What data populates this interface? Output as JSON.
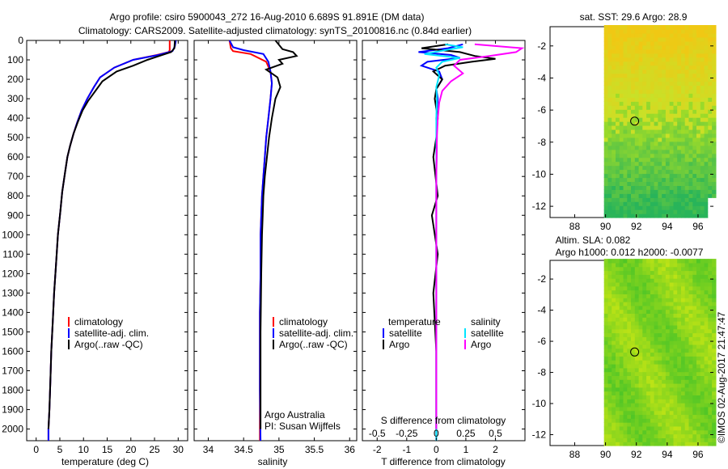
{
  "header": {
    "line1": "Argo profile: csiro 5900043_272 16-Aug-2010 6.689S 91.891E (DM data)",
    "line2": "Climatology: CARS2009. Satellite-adjusted climatology: synTS_20100816.nc (0.84d earlier)"
  },
  "colors": {
    "climatology": "#ff0000",
    "satellite": "#0000ff",
    "argo": "#000000",
    "argo_salinity": "#ff00ff",
    "satellite_salinity": "#00e5ff"
  },
  "chart_data": [
    {
      "type": "line",
      "title": "",
      "xlabel": "temperature (deg C)",
      "ylabel": "",
      "xlim": [
        -2,
        32
      ],
      "ylim": [
        2060,
        0
      ],
      "xticks": [
        0,
        5,
        10,
        15,
        20,
        25,
        30
      ],
      "yticks": [
        0,
        100,
        200,
        300,
        400,
        500,
        600,
        700,
        800,
        900,
        1000,
        1100,
        1200,
        1300,
        1400,
        1500,
        1600,
        1700,
        1800,
        1900,
        2000
      ],
      "legend": [
        "climatology",
        "satellite-adj. clim.",
        "Argo(..raw -QC)"
      ],
      "series": [
        {
          "name": "climatology",
          "color": "#ff0000",
          "x": [
            28.2,
            28.2,
            28.0,
            25.5,
            20.5,
            16.5,
            13.5,
            12.2,
            10.8,
            9.6,
            8.7,
            7.9,
            7.2,
            6.6,
            6.1,
            5.5,
            5.1,
            4.6,
            4.2,
            3.8,
            3.5,
            3.2,
            3.0,
            2.8,
            2.6,
            2.6
          ],
          "y": [
            0,
            50,
            60,
            75,
            100,
            140,
            190,
            240,
            300,
            360,
            420,
            480,
            540,
            600,
            680,
            780,
            880,
            1000,
            1150,
            1300,
            1450,
            1600,
            1750,
            1900,
            2000,
            2060
          ]
        },
        {
          "name": "satellite-adj. clim.",
          "color": "#0000ff",
          "x": [
            29.5,
            29.3,
            28.8,
            25.8,
            20.5,
            16.5,
            13.5,
            12.2,
            10.8,
            9.6,
            8.7,
            7.9,
            7.2,
            6.6,
            6.1,
            5.5,
            5.1,
            4.6,
            4.2,
            3.8,
            3.5,
            3.2,
            3.0,
            2.8,
            2.6,
            2.6
          ],
          "y": [
            0,
            30,
            55,
            75,
            100,
            140,
            190,
            240,
            300,
            360,
            420,
            480,
            540,
            600,
            680,
            780,
            880,
            1000,
            1150,
            1300,
            1450,
            1600,
            1750,
            1900,
            2000,
            2060
          ]
        },
        {
          "name": "Argo(..raw -QC)",
          "color": "#000000",
          "x": [
            29.3,
            29.2,
            28.5,
            26.0,
            23.5,
            20.5,
            17.0,
            14.0,
            12.5,
            11.0,
            9.8,
            8.8,
            7.9,
            7.2,
            6.6,
            6.1,
            5.5,
            5.1,
            4.6,
            4.2,
            3.8,
            3.5,
            3.2,
            3.0,
            2.8,
            2.6
          ],
          "y": [
            0,
            40,
            60,
            80,
            100,
            130,
            160,
            210,
            260,
            310,
            360,
            420,
            480,
            540,
            600,
            680,
            780,
            880,
            1000,
            1150,
            1300,
            1450,
            1600,
            1750,
            1900,
            2000
          ]
        }
      ]
    },
    {
      "type": "line",
      "title": "",
      "xlabel": "salinity",
      "ylabel": "",
      "xlim": [
        33.8,
        36.1
      ],
      "ylim": [
        2060,
        0
      ],
      "xticks": [
        34,
        34.5,
        35,
        35.5,
        36
      ],
      "legend": [
        "climatology",
        "satellite-adj. clim.",
        "Argo(..raw -QC)"
      ],
      "annotations": [
        "Argo Australia",
        "PI: Susan Wijffels"
      ],
      "series": [
        {
          "name": "climatology",
          "color": "#ff0000",
          "x": [
            34.3,
            34.32,
            34.35,
            34.6,
            34.82,
            34.88,
            34.9,
            34.88,
            34.85,
            34.82,
            34.8,
            34.78,
            34.76,
            34.75,
            34.74,
            34.74,
            34.73,
            34.73,
            34.73,
            34.73
          ],
          "y": [
            0,
            40,
            55,
            70,
            110,
            160,
            220,
            300,
            400,
            500,
            600,
            700,
            800,
            900,
            1000,
            1200,
            1400,
            1600,
            1800,
            2060
          ]
        },
        {
          "name": "satellite-adj. clim.",
          "color": "#0000ff",
          "x": [
            34.3,
            34.35,
            34.5,
            34.78,
            34.85,
            34.88,
            34.9,
            34.88,
            34.85,
            34.82,
            34.8,
            34.78,
            34.76,
            34.75,
            34.74,
            34.74,
            34.73,
            34.73,
            34.73,
            34.74
          ],
          "y": [
            0,
            35,
            50,
            70,
            110,
            160,
            220,
            300,
            400,
            500,
            600,
            700,
            800,
            900,
            1000,
            1200,
            1400,
            1600,
            1800,
            2060
          ]
        },
        {
          "name": "Argo(..raw -QC)",
          "color": "#000000",
          "x": [
            34.95,
            35.05,
            35.2,
            35.25,
            35.0,
            35.05,
            34.82,
            34.98,
            35.02,
            34.95,
            34.9,
            34.86,
            34.83,
            34.8,
            34.78,
            34.77,
            34.76,
            34.75,
            34.74,
            34.74
          ],
          "y": [
            0,
            45,
            60,
            80,
            100,
            120,
            150,
            190,
            240,
            300,
            400,
            500,
            600,
            700,
            800,
            900,
            1000,
            1200,
            1500,
            2000
          ]
        }
      ]
    },
    {
      "type": "line",
      "title": "",
      "xlabel": "T difference from climatology",
      "xlabel2": "S difference from climatology",
      "ylabel": "",
      "xlim": [
        -2.5,
        3.0
      ],
      "ylim": [
        2060,
        0
      ],
      "xticks": [
        -2,
        -1,
        0,
        1,
        2
      ],
      "xticks_top": [
        -0.5,
        -0.25,
        0,
        0.25,
        0.5
      ],
      "legend": [
        "temperature",
        "satellite",
        "Argo",
        "salinity",
        "satellite",
        "Argo"
      ],
      "series": [
        {
          "name": "T satellite",
          "color": "#0000ff",
          "x": [
            0.9,
            0.4,
            -0.6,
            0.5,
            0.8,
            -0.3,
            -0.5,
            0.1,
            0.2,
            0.0,
            0.05,
            0.0,
            0.02,
            0.0,
            0.0,
            0.0,
            0.0,
            0.0
          ],
          "y": [
            20,
            40,
            60,
            75,
            90,
            110,
            130,
            160,
            200,
            250,
            300,
            400,
            500,
            700,
            900,
            1200,
            1600,
            2060
          ]
        },
        {
          "name": "T Argo",
          "color": "#000000",
          "x": [
            0.4,
            -0.5,
            0.8,
            1.3,
            2.0,
            1.2,
            0.3,
            -0.1,
            0.2,
            0.0,
            -0.05,
            0.05,
            0.0,
            -0.1,
            0.05,
            -0.15,
            0.05,
            -0.1,
            0.0,
            0.0,
            0.0
          ],
          "y": [
            20,
            40,
            60,
            80,
            95,
            110,
            130,
            160,
            200,
            250,
            300,
            400,
            500,
            600,
            800,
            900,
            1100,
            1300,
            1600,
            1800,
            2000
          ]
        },
        {
          "name": "S satellite",
          "color": "#00e5ff",
          "x": [
            0.3,
            0.9,
            0.3,
            -0.4,
            0.8,
            0.2,
            0.0,
            0.1,
            0.0,
            0.02,
            0.0,
            0.0,
            0.0,
            0.0,
            0.0,
            0.0
          ],
          "y": [
            20,
            35,
            50,
            70,
            90,
            110,
            140,
            180,
            240,
            300,
            400,
            600,
            900,
            1300,
            1700,
            2060
          ]
        },
        {
          "name": "S Argo",
          "color": "#ff00ff",
          "x": [
            1.3,
            2.9,
            2.7,
            1.8,
            0.8,
            0.6,
            0.9,
            0.5,
            0.2,
            0.1,
            0.05,
            0.02,
            0.0,
            0.0,
            0.0,
            0.0
          ],
          "y": [
            20,
            40,
            60,
            80,
            100,
            130,
            170,
            210,
            260,
            320,
            400,
            500,
            700,
            1000,
            1500,
            2000
          ]
        }
      ]
    },
    {
      "type": "heatmap",
      "title": "sat. SST: 29.6  Argo: 28.9",
      "xlim": [
        86.4,
        97.0
      ],
      "ylim": [
        -12.7,
        -0.8
      ],
      "xticks": [
        88,
        90,
        92,
        94,
        96
      ],
      "yticks": [
        -2,
        -4,
        -6,
        -8,
        -10,
        -12
      ],
      "data_lon_min": 89.9,
      "marker": {
        "lon": 91.891,
        "lat": -6.689
      }
    },
    {
      "type": "heatmap",
      "title": "Altim. SLA: 0.082",
      "subtitle": "Argo h1000: 0.012 h2000: -0.0077",
      "xlim": [
        86.4,
        97.0
      ],
      "ylim": [
        -12.7,
        -0.8
      ],
      "xticks": [
        88,
        90,
        92,
        94,
        96
      ],
      "yticks": [
        -2,
        -4,
        -6,
        -8,
        -10,
        -12
      ],
      "data_lon_min": 89.9,
      "marker": {
        "lon": 91.891,
        "lat": -6.689
      }
    }
  ],
  "side_label": "©IMOS 02-Aug-2017 21:47:47"
}
